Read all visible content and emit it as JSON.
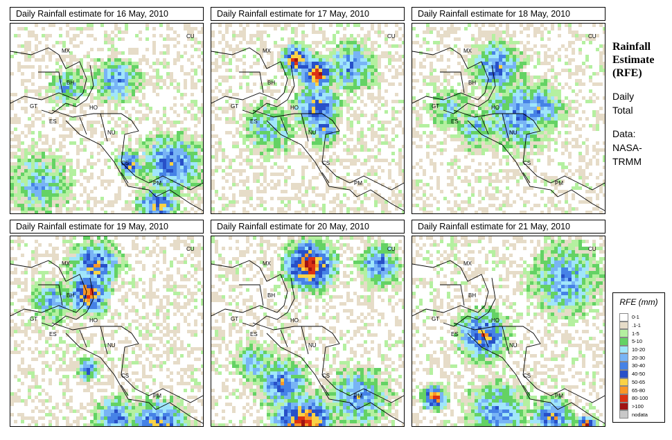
{
  "panels": [
    {
      "title": "Daily Rainfall estimate for  16 May, 2010"
    },
    {
      "title": "Daily Rainfall estimate for  17 May, 2010"
    },
    {
      "title": "Daily Rainfall estimate for  18 May, 2010"
    },
    {
      "title": "Daily Rainfall estimate for  19 May, 2010"
    },
    {
      "title": "Daily Rainfall estimate for  20 May, 2010"
    },
    {
      "title": "Daily Rainfall estimate for  21 May, 2010"
    }
  ],
  "country_labels": {
    "cu": "CU",
    "mx": "MX",
    "bh": "BH",
    "gt": "GT",
    "ho": "HO",
    "es": "ES",
    "nu": "NU",
    "cs": "CS",
    "pm": "PM"
  },
  "side": {
    "title": "Rainfall Estimate (RFE)",
    "subtitle": "Daily Total",
    "data_label": "Data:",
    "data_source": "NASA-TRMM"
  },
  "legend": {
    "title": "RFE (mm)",
    "items": [
      {
        "label": "0-1",
        "color": "#ffffff"
      },
      {
        "label": ".1-1",
        "color": "#e6dcc8"
      },
      {
        "label": "1-5",
        "color": "#b4f0a0"
      },
      {
        "label": "5-10",
        "color": "#64d264"
      },
      {
        "label": "10-20",
        "color": "#a0e6fa"
      },
      {
        "label": "20-30",
        "color": "#78b4f5"
      },
      {
        "label": "30-40",
        "color": "#4682e6"
      },
      {
        "label": "40-50",
        "color": "#2850c8"
      },
      {
        "label": "50-65",
        "color": "#fad246"
      },
      {
        "label": "65-80",
        "color": "#fa9628"
      },
      {
        "label": "80-100",
        "color": "#dc3214"
      },
      {
        "label": ">100",
        "color": "#a01414"
      },
      {
        "label": "nodata",
        "color": "#c8c8c8"
      }
    ]
  }
}
